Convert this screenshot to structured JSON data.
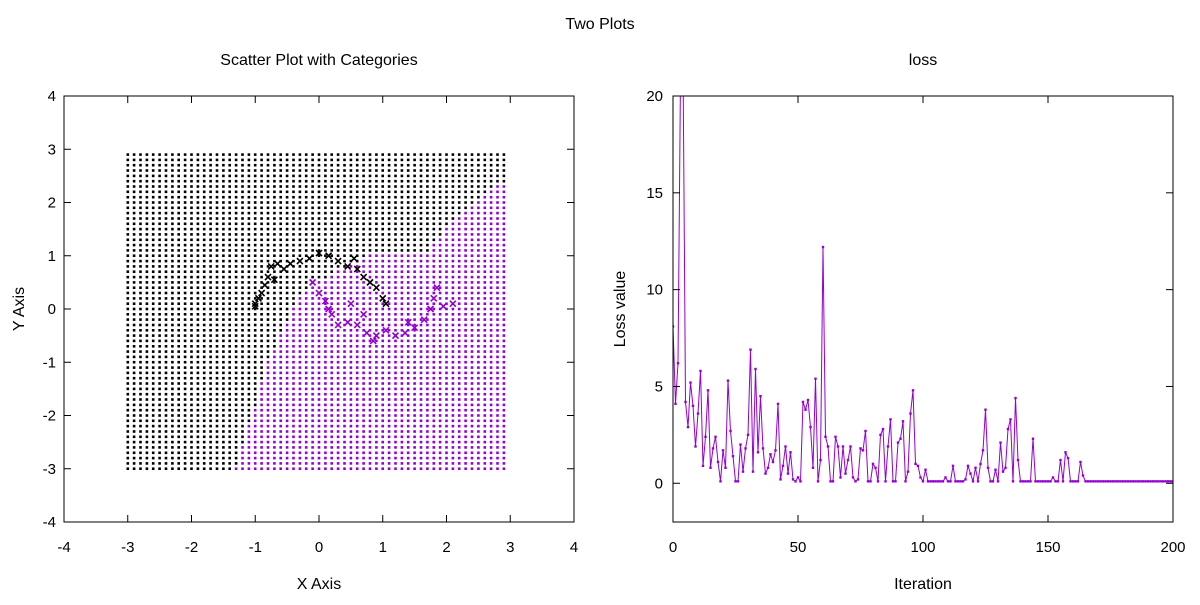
{
  "figure": {
    "title": "Two Plots"
  },
  "colors": {
    "category_0": "#000000",
    "category_1": "#9400d3",
    "loss_line": "#9400d3"
  },
  "chart_data": [
    {
      "type": "scatter",
      "title": "Scatter Plot with Categories",
      "xlabel": "X Axis",
      "ylabel": "Y Axis",
      "xlim": [
        -4,
        4
      ],
      "ylim": [
        -4,
        4
      ],
      "xticks": [
        -4,
        -3,
        -2,
        -1,
        0,
        1,
        2,
        3,
        4
      ],
      "yticks": [
        -4,
        -3,
        -2,
        -1,
        0,
        1,
        2,
        3,
        4
      ],
      "grid": false,
      "legend": "none",
      "grid_points": {
        "x_range": [
          -3,
          2.9
        ],
        "y_range": [
          -3,
          2.9
        ],
        "step": 0.1
      },
      "decision_boundary": [
        [
          -1.3,
          -3.0
        ],
        [
          -0.8,
          -1.0
        ],
        [
          -0.3,
          0.3
        ],
        [
          0.1,
          0.6
        ],
        [
          0.8,
          1.0
        ],
        [
          1.2,
          0.3
        ],
        [
          1.5,
          0.8
        ],
        [
          2.2,
          1.8
        ],
        [
          2.9,
          2.4
        ]
      ],
      "series": [
        {
          "category": 0,
          "points": [
            [
              -1.0,
              0.1
            ],
            [
              -0.95,
              0.2
            ],
            [
              -0.9,
              0.3
            ],
            [
              -0.85,
              0.45
            ],
            [
              -0.8,
              0.6
            ],
            [
              -0.75,
              0.8
            ],
            [
              -0.65,
              0.85
            ],
            [
              -0.55,
              0.75
            ],
            [
              -0.45,
              0.85
            ],
            [
              -0.3,
              0.9
            ],
            [
              -0.15,
              0.95
            ],
            [
              0.0,
              1.05
            ],
            [
              0.15,
              1.0
            ],
            [
              0.3,
              0.9
            ],
            [
              0.45,
              0.8
            ],
            [
              0.6,
              0.75
            ],
            [
              0.7,
              0.6
            ],
            [
              0.8,
              0.5
            ],
            [
              0.9,
              0.4
            ],
            [
              1.0,
              0.2
            ],
            [
              1.05,
              0.1
            ],
            [
              -0.7,
              0.55
            ],
            [
              0.55,
              0.95
            ],
            [
              -1.0,
              0.05
            ]
          ]
        },
        {
          "category": 1,
          "points": [
            [
              -0.1,
              0.5
            ],
            [
              0.0,
              0.3
            ],
            [
              0.1,
              0.15
            ],
            [
              0.15,
              0.0
            ],
            [
              0.2,
              -0.1
            ],
            [
              0.3,
              -0.3
            ],
            [
              0.45,
              -0.25
            ],
            [
              0.6,
              -0.3
            ],
            [
              0.75,
              -0.45
            ],
            [
              0.9,
              -0.5
            ],
            [
              1.05,
              -0.4
            ],
            [
              1.2,
              -0.5
            ],
            [
              1.35,
              -0.45
            ],
            [
              1.5,
              -0.35
            ],
            [
              1.65,
              -0.2
            ],
            [
              1.75,
              0.0
            ],
            [
              1.8,
              0.2
            ],
            [
              1.85,
              0.4
            ],
            [
              1.95,
              0.05
            ],
            [
              2.1,
              0.1
            ],
            [
              0.5,
              0.1
            ],
            [
              0.7,
              -0.1
            ],
            [
              0.85,
              -0.6
            ],
            [
              1.4,
              -0.25
            ]
          ]
        }
      ]
    },
    {
      "type": "line",
      "title": "loss",
      "xlabel": "Iteration",
      "ylabel": "Loss value",
      "xlim": [
        0,
        200
      ],
      "ylim": [
        -2,
        20
      ],
      "xticks": [
        0,
        50,
        100,
        150,
        200
      ],
      "yticks": [
        0,
        5,
        10,
        15,
        20
      ],
      "grid": false,
      "legend": "none",
      "series": [
        {
          "name": "loss",
          "values": [
            8.1,
            4.1,
            6.2,
            21.0,
            22.0,
            4.2,
            2.9,
            5.2,
            4.0,
            1.9,
            3.6,
            5.8,
            0.9,
            2.4,
            4.8,
            0.8,
            1.8,
            2.4,
            1.1,
            0.1,
            1.7,
            0.8,
            5.3,
            2.7,
            1.4,
            0.1,
            0.1,
            2.0,
            0.6,
            1.8,
            2.5,
            6.9,
            0.6,
            5.9,
            1.6,
            4.5,
            1.8,
            0.5,
            0.8,
            1.5,
            1.1,
            1.7,
            4.1,
            0.2,
            0.9,
            1.9,
            0.5,
            1.6,
            0.2,
            0.1,
            0.3,
            0.1,
            4.2,
            3.8,
            4.3,
            2.9,
            0.8,
            5.4,
            0.1,
            1.2,
            12.2,
            2.4,
            1.9,
            0.1,
            0.1,
            2.4,
            1.9,
            0.3,
            1.9,
            0.5,
            1.2,
            1.9,
            0.3,
            0.1,
            0.2,
            1.8,
            1.7,
            2.7,
            0.1,
            0.1,
            1.0,
            0.8,
            0.1,
            2.5,
            2.8,
            0.1,
            1.9,
            3.3,
            0.1,
            0.1,
            2.1,
            2.3,
            3.2,
            0.1,
            0.6,
            3.6,
            4.8,
            1.0,
            0.9,
            0.3,
            0.1,
            0.7,
            0.1,
            0.1,
            0.1,
            0.1,
            0.1,
            0.1,
            0.1,
            0.3,
            0.1,
            0.1,
            0.9,
            0.1,
            0.1,
            0.1,
            0.1,
            0.2,
            0.9,
            0.5,
            0.1,
            0.8,
            0.1,
            1.0,
            1.7,
            3.8,
            0.8,
            0.1,
            0.1,
            0.7,
            0.1,
            2.1,
            0.6,
            0.8,
            2.8,
            3.3,
            0.1,
            4.4,
            1.2,
            0.1,
            0.1,
            0.1,
            0.1,
            0.1,
            2.3,
            0.1,
            0.1,
            0.1,
            0.1,
            0.1,
            0.1,
            0.1,
            0.3,
            0.1,
            0.1,
            1.2,
            0.1,
            1.6,
            1.3,
            0.1,
            0.1,
            0.1,
            0.1,
            1.1,
            0.4,
            0.1,
            0.1,
            0.1,
            0.1,
            0.1,
            0.1,
            0.1,
            0.1,
            0.1,
            0.1,
            0.1,
            0.1,
            0.1,
            0.1,
            0.1,
            0.1,
            0.1,
            0.1,
            0.1,
            0.1,
            0.1,
            0.1,
            0.1,
            0.1,
            0.1,
            0.1,
            0.1,
            0.1,
            0.1,
            0.1,
            0.1,
            0.1,
            0.1,
            0.1,
            0.1,
            0.1,
            0.1,
            0.1,
            0.1,
            0.1,
            0.1,
            0.5,
            0.1,
            0.1
          ]
        }
      ]
    }
  ]
}
